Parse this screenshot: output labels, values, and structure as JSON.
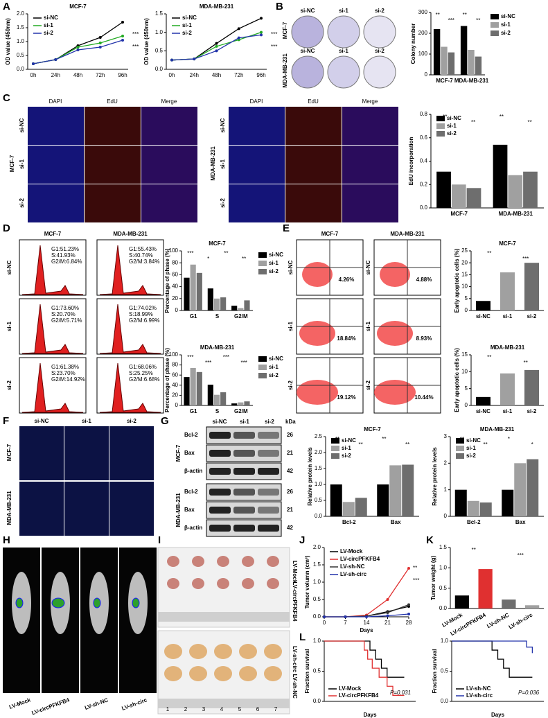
{
  "panel_letters": [
    "A",
    "B",
    "C",
    "D",
    "E",
    "F",
    "G",
    "H",
    "I",
    "J",
    "K",
    "L"
  ],
  "images": {
    "B": {
      "columns": [
        "si-NC",
        "si-1",
        "si-2"
      ],
      "rows": [
        "MCF-7",
        "MDA-MB-231"
      ]
    },
    "C": {
      "columns": [
        "DAPI",
        "EdU",
        "Merge"
      ],
      "rows": [
        "si-NC",
        "si-1",
        "si-2"
      ],
      "groups": [
        "MCF-7",
        "MDA-MB-231"
      ]
    },
    "D": {
      "columns": [
        "MCF-7",
        "MDA-MB-231"
      ],
      "rows": [
        "si-NC",
        "si-1",
        "si-2"
      ],
      "cells": [
        [
          [
            "G1:51.23%",
            "S:41.93%",
            "G2/M:6.84%"
          ],
          [
            "G1:55.43%",
            "S:40.74%",
            "G2/M:3.84%"
          ]
        ],
        [
          [
            "G1:73.60%",
            "S:20.70%",
            "G2/M:5.71%"
          ],
          [
            "G1:74.02%",
            "S:18.99%",
            "G2/M:6.99%"
          ]
        ],
        [
          [
            "G1:61.38%",
            "S:23.70%",
            "G2/M:14.92%"
          ],
          [
            "G1:68.06%",
            "S:25.25%",
            "G2/M:6.68%"
          ]
        ]
      ]
    },
    "E": {
      "columns": [
        "MCF-7",
        "MDA-MB-231"
      ],
      "rows": [
        "si-NC",
        "si-1",
        "si-2"
      ],
      "cells": [
        [
          "4.26%",
          "4.88%"
        ],
        [
          "18.84%",
          "8.93%"
        ],
        [
          "19.12%",
          "10.44%"
        ]
      ]
    },
    "F": {
      "columns": [
        "si-NC",
        "si-1",
        "si-2"
      ],
      "rows": [
        "MCF-7",
        "MDA-MB-231"
      ]
    },
    "G": {
      "columns": [
        "si-NC",
        "si-1",
        "si-2"
      ],
      "unit": "kDa",
      "groups": [
        "MCF-7",
        "MDA-MB-231"
      ],
      "proteins": [
        [
          "Bcl-2",
          "26"
        ],
        [
          "Bax",
          "21"
        ],
        [
          "β-actin",
          "42"
        ]
      ]
    },
    "H": {
      "labels": [
        "LV-Mock",
        "LV-circPFKFB4",
        "LV-sh-NC",
        "LV-sh-circ"
      ]
    },
    "I": {
      "groups": [
        "LV-Mock",
        "LV-circPFKFB4",
        "LV-sh-circ  LV-sh-NC"
      ],
      "numbers": [
        "1",
        "2",
        "3",
        "4",
        "5",
        "6",
        "7"
      ]
    }
  },
  "chart_data": [
    {
      "type": "line",
      "title": "MCF-7",
      "y_label": "OD value (450nm)",
      "categories": [
        "0h",
        "24h",
        "48h",
        "72h",
        "96h"
      ],
      "ylim": [
        0,
        2
      ],
      "yticks": [
        {
          "value": 0,
          "label": "0.0"
        },
        0.5,
        {
          "value": 1,
          "label": "1.0"
        },
        1.5,
        {
          "value": 2,
          "label": "2.0"
        }
      ],
      "legend": "upper left",
      "annotations": [
        "***",
        "***"
      ],
      "series": [
        {
          "name": "si-NC",
          "color": "#000000",
          "values": [
            0.2,
            0.35,
            0.85,
            1.15,
            1.7
          ]
        },
        {
          "name": "si-1",
          "color": "#22aa22",
          "values": [
            0.2,
            0.35,
            0.8,
            0.95,
            1.2
          ]
        },
        {
          "name": "si-2",
          "color": "#2233aa",
          "values": [
            0.2,
            0.35,
            0.7,
            0.8,
            1.05
          ]
        }
      ]
    },
    {
      "type": "line",
      "title": "MDA-MB-231",
      "y_label": "OD value (450nm)",
      "categories": [
        "0h",
        "24h",
        "48h",
        "72h",
        "96h"
      ],
      "ylim": [
        0,
        1.5
      ],
      "yticks": [
        {
          "value": 0,
          "label": "0.0"
        },
        0.5,
        {
          "value": 1,
          "label": "1.0"
        },
        1.5
      ],
      "legend": "upper left",
      "annotations": [
        "***",
        "***"
      ],
      "series": [
        {
          "name": "si-NC",
          "color": "#000000",
          "values": [
            0.25,
            0.28,
            0.7,
            1.1,
            1.38
          ]
        },
        {
          "name": "si-1",
          "color": "#22aa22",
          "values": [
            0.25,
            0.28,
            0.62,
            0.8,
            1.0
          ]
        },
        {
          "name": "si-2",
          "color": "#2233aa",
          "values": [
            0.25,
            0.28,
            0.5,
            0.85,
            0.93
          ]
        }
      ]
    },
    {
      "type": "bar",
      "y_label": "Colony number",
      "categories": [
        "MCF-7",
        "MDA-MB-231"
      ],
      "ylim": [
        0,
        300
      ],
      "yticks": [
        0,
        100,
        200,
        300
      ],
      "legend": "right",
      "annotations": [
        "**",
        "***",
        "**",
        "**"
      ],
      "series": [
        {
          "name": "si-NC",
          "color": "#000000",
          "values": [
            220,
            235
          ]
        },
        {
          "name": "si-1",
          "color": "#a0a0a0",
          "values": [
            135,
            120
          ]
        },
        {
          "name": "si-2",
          "color": "#6e6e6e",
          "values": [
            108,
            88
          ]
        }
      ]
    },
    {
      "type": "bar",
      "y_label": "EdU incorporation",
      "categories": [
        "MCF-7",
        "MDA-MB-231"
      ],
      "ylim": [
        0,
        0.8
      ],
      "yticks": [
        {
          "value": 0,
          "label": "0.0"
        },
        0.2,
        0.4,
        0.6,
        0.8
      ],
      "legend": "upper left",
      "annotations": [
        "**",
        "**",
        "**",
        "**"
      ],
      "series": [
        {
          "name": "si-NC",
          "color": "#000000",
          "values": [
            0.31,
            0.54
          ]
        },
        {
          "name": "si-1",
          "color": "#a0a0a0",
          "values": [
            0.2,
            0.28
          ]
        },
        {
          "name": "si-2",
          "color": "#6e6e6e",
          "values": [
            0.17,
            0.31
          ]
        }
      ]
    },
    {
      "type": "bar",
      "title": "MCF-7",
      "y_label": "Percentage of phase (%)",
      "categories": [
        "G1",
        "S",
        "G2/M"
      ],
      "ylim": [
        0,
        100
      ],
      "yticks": [
        0,
        20,
        40,
        60,
        80,
        100
      ],
      "legend": "right",
      "annotations": [
        "***",
        "*",
        "**",
        "**"
      ],
      "series": [
        {
          "name": "si-NC",
          "color": "#000000",
          "values": [
            55,
            37,
            8
          ]
        },
        {
          "name": "si-1",
          "color": "#a0a0a0",
          "values": [
            77,
            20,
            4
          ]
        },
        {
          "name": "si-2",
          "color": "#6e6e6e",
          "values": [
            63,
            22,
            17
          ]
        }
      ]
    },
    {
      "type": "bar",
      "title": "MDA-MB-231",
      "y_label": "Percentage of phase (%)",
      "categories": [
        "G1",
        "S",
        "G2/M"
      ],
      "ylim": [
        0,
        100
      ],
      "yticks": [
        0,
        20,
        40,
        60,
        80,
        100
      ],
      "legend": "right",
      "annotations": [
        "***",
        "***",
        "***",
        "***"
      ],
      "series": [
        {
          "name": "si-NC",
          "color": "#000000",
          "values": [
            56,
            41,
            4
          ]
        },
        {
          "name": "si-1",
          "color": "#a0a0a0",
          "values": [
            74,
            21,
            6
          ]
        },
        {
          "name": "si-2",
          "color": "#6e6e6e",
          "values": [
            66,
            26,
            8
          ]
        }
      ]
    },
    {
      "type": "bar",
      "title": "MCF-7",
      "y_label": "Early apoptotic cells (%)",
      "categories": [
        "si-NC",
        "si-1",
        "si-2"
      ],
      "ylim": [
        0,
        25
      ],
      "yticks": [
        0,
        5,
        10,
        15,
        20,
        25
      ],
      "values": [
        4,
        16,
        20
      ],
      "colors": [
        "#000000",
        "#a0a0a0",
        "#6e6e6e"
      ],
      "annotations": [
        "**",
        "***"
      ]
    },
    {
      "type": "bar",
      "title": "MDA-MB-231",
      "y_label": "Early apoptotic cells (%)",
      "categories": [
        "si-NC",
        "si-1",
        "si-2"
      ],
      "ylim": [
        0,
        15
      ],
      "yticks": [
        0,
        5,
        10,
        15
      ],
      "values": [
        2.5,
        9.5,
        10.5
      ],
      "colors": [
        "#000000",
        "#a0a0a0",
        "#6e6e6e"
      ],
      "annotations": [
        "**",
        "**"
      ]
    },
    {
      "type": "bar",
      "title": "MCF-7",
      "y_label": "Relative protein levels",
      "categories": [
        "Bcl-2",
        "Bax"
      ],
      "ylim": [
        0,
        2.5
      ],
      "yticks": [
        {
          "value": 0,
          "label": "0.0"
        },
        0.5,
        {
          "value": 1,
          "label": "1.0"
        },
        1.5,
        {
          "value": 2,
          "label": "2.0"
        },
        2.5
      ],
      "legend": "upper left",
      "annotations": [
        "**",
        "**",
        "**",
        "**"
      ],
      "series": [
        {
          "name": "si-NC",
          "color": "#000000",
          "values": [
            1.0,
            1.0
          ]
        },
        {
          "name": "si-1",
          "color": "#a0a0a0",
          "values": [
            0.45,
            1.6
          ]
        },
        {
          "name": "si-2",
          "color": "#6e6e6e",
          "values": [
            0.58,
            1.62
          ]
        }
      ]
    },
    {
      "type": "bar",
      "title": "MDA-MB-231",
      "y_label": "Relative protein levels",
      "categories": [
        "Bcl-2",
        "Bax"
      ],
      "ylim": [
        0,
        3
      ],
      "yticks": [
        0,
        1,
        2,
        3
      ],
      "legend": "upper left",
      "annotations": [
        "**",
        "**",
        "*",
        "*"
      ],
      "series": [
        {
          "name": "si-NC",
          "color": "#000000",
          "values": [
            1.0,
            1.0
          ]
        },
        {
          "name": "si-1",
          "color": "#a0a0a0",
          "values": [
            0.58,
            2.0
          ]
        },
        {
          "name": "si-2",
          "color": "#6e6e6e",
          "values": [
            0.52,
            2.15
          ]
        }
      ]
    },
    {
      "type": "line",
      "y_label": "Tumor volumn (cm³)",
      "x_label": "Days",
      "x": [
        0,
        7,
        14,
        21,
        28
      ],
      "xlim": [
        0,
        28
      ],
      "xticks": [
        0,
        7,
        14,
        21,
        28
      ],
      "ylim": [
        0,
        2
      ],
      "yticks": [
        {
          "value": 0,
          "label": "0.0"
        },
        0.5,
        {
          "value": 1,
          "label": "1.0"
        },
        1.5,
        {
          "value": 2,
          "label": "2.0"
        }
      ],
      "legend": "upper left",
      "annotations": [
        "**",
        "***"
      ],
      "series": [
        {
          "name": "LV-Mock",
          "color": "#000000",
          "values": [
            0,
            0,
            0.02,
            0.15,
            0.3
          ]
        },
        {
          "name": "LV-circPFKFB4",
          "color": "#e03030",
          "values": [
            0,
            0,
            0.05,
            0.5,
            1.4
          ]
        },
        {
          "name": "LV-sh-NC",
          "color": "#333333",
          "values": [
            0,
            0,
            0.02,
            0.12,
            0.35
          ]
        },
        {
          "name": "LV-sh-circ",
          "color": "#2233aa",
          "values": [
            0,
            0,
            0,
            0.03,
            0.08
          ]
        }
      ]
    },
    {
      "type": "bar",
      "y_label": "Tumor weight (g)",
      "categories": [
        "LV-Mock",
        "LV-circPFKFB4",
        "LV-sh-NC",
        "LV-sh-circ"
      ],
      "ylim": [
        0,
        1.5
      ],
      "yticks": [
        {
          "value": 0,
          "label": "0.0"
        },
        0.5,
        {
          "value": 1,
          "label": "1.0"
        },
        1.5
      ],
      "values": [
        0.32,
        0.97,
        0.22,
        0.08
      ],
      "colors": [
        "#000000",
        "#e03030",
        "#6e6e6e",
        "#a0a0a0"
      ],
      "annotations": [
        "**",
        "***"
      ]
    },
    {
      "type": "step",
      "y_label": "Fraction survival",
      "x_label": "Days",
      "xlim": [
        0,
        80
      ],
      "ylim": [
        0,
        1
      ],
      "yticks": [
        {
          "value": 0,
          "label": "0.0"
        },
        0.5,
        {
          "value": 1,
          "label": "1.0"
        }
      ],
      "legend": "lower left",
      "annotations": [
        "P=0.031"
      ],
      "series": [
        {
          "name": "LV-Mock",
          "color": "#000000",
          "x": [
            0,
            40,
            45,
            50,
            55,
            70
          ],
          "values": [
            1,
            0.85,
            0.7,
            0.55,
            0.4,
            0.4
          ]
        },
        {
          "name": "LV-circPFKFB4",
          "color": "#e03030",
          "x": [
            0,
            35,
            38,
            42,
            48,
            55,
            60,
            70
          ],
          "values": [
            1,
            0.85,
            0.7,
            0.55,
            0.4,
            0.25,
            0.1,
            0.1
          ]
        }
      ]
    },
    {
      "type": "step",
      "y_label": "Fraction survival",
      "x_label": "Days",
      "xlim": [
        0,
        80
      ],
      "ylim": [
        0,
        1
      ],
      "yticks": [
        {
          "value": 0,
          "label": "0.0"
        },
        0.5,
        {
          "value": 1,
          "label": "1.0"
        }
      ],
      "legend": "lower left",
      "annotations": [
        "P=0.036"
      ],
      "series": [
        {
          "name": "LV-sh-NC",
          "color": "#000000",
          "x": [
            0,
            35,
            40,
            45,
            50,
            70
          ],
          "values": [
            1,
            0.85,
            0.7,
            0.55,
            0.4,
            0.4
          ]
        },
        {
          "name": "LV-sh-circ",
          "color": "#2233aa",
          "x": [
            0,
            65,
            70
          ],
          "values": [
            1,
            0.9,
            0.8
          ]
        }
      ]
    }
  ]
}
